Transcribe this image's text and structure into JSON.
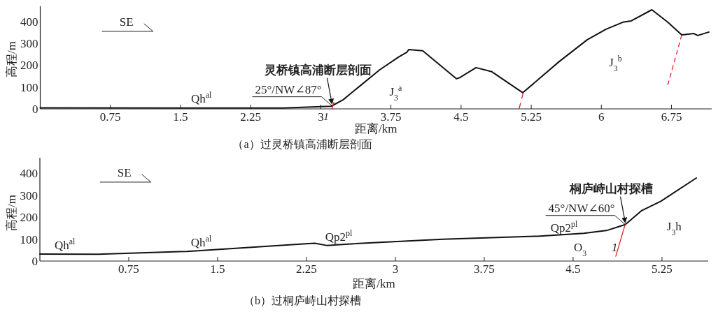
{
  "chart_data": [
    {
      "type": "line",
      "title": "（a）过灵桥镇高浦断层剖面",
      "xlabel": "距离/km",
      "ylabel": "高程/m",
      "xlim": [
        0,
        7.18
      ],
      "ylim": [
        0,
        470
      ],
      "xticks": [
        0.75,
        1.5,
        2.25,
        3,
        3.75,
        4.5,
        5.25,
        6,
        6.75
      ],
      "yticks": [
        0,
        100,
        200,
        300,
        400
      ],
      "series": [
        {
          "color": "#111111",
          "x": [
            0,
            1.5,
            2.6,
            3.0,
            3.11,
            3.24,
            3.31,
            3.63,
            3.83,
            3.92,
            3.94,
            4.09,
            4.45,
            4.49,
            4.66,
            4.83,
            5.16,
            5.55,
            5.85,
            6.05,
            6.23,
            6.32,
            6.54,
            6.71,
            6.86,
            6.99,
            7.03,
            7.15
          ],
          "values": [
            5,
            4,
            4,
            10,
            12,
            42,
            67,
            179,
            237,
            259,
            272,
            266,
            138,
            144,
            189,
            170,
            74,
            217,
            317,
            365,
            397,
            403,
            454,
            397,
            339,
            345,
            336,
            352
          ]
        },
        {
          "color": "#e0202a",
          "line_style": "solid",
          "x": [
            3.12,
            3.14
          ],
          "values": [
            0,
            30
          ]
        },
        {
          "color": "#e0202a",
          "line_style": "dashed",
          "x": [
            5.12,
            5.165
          ],
          "values": [
            0,
            74
          ]
        },
        {
          "color": "#e0202a",
          "line_style": "dashed",
          "x": [
            6.71,
            6.86
          ],
          "values": [
            109,
            339
          ]
        }
      ],
      "annotations": [
        "SE",
        "Qh$^{al}$",
        "J$_{3}$$^{a}$",
        "J$_{3}$$^{b}$",
        {
          "text": "灵桥镇高浦断层剖面",
          "x": 3.12,
          "y": 14
        },
        {
          "text": "25°/NW∠87°",
          "x": 3.12,
          "y": 14
        },
        {
          "text": "1",
          "x": 3.08,
          "y": 0
        }
      ]
    },
    {
      "type": "line",
      "title": "（b）过桐庐峙山村探槽",
      "xlabel": "距离/km",
      "ylabel": "高程/m",
      "xlim": [
        0,
        5.64
      ],
      "ylim": [
        0,
        470
      ],
      "xticks": [
        0.75,
        1.5,
        2.25,
        3,
        3.75,
        4.5,
        5.25
      ],
      "yticks": [
        0,
        100,
        200,
        300,
        400
      ],
      "series": [
        {
          "color": "#111111",
          "x": [
            0,
            0.49,
            1.24,
            1.63,
            2.22,
            2.32,
            2.42,
            2.62,
            3.4,
            4.2,
            4.59,
            4.79,
            4.94,
            5.08,
            5.24,
            5.54
          ],
          "values": [
            32,
            31,
            44,
            57,
            78,
            81,
            71,
            78,
            99,
            113,
            126,
            140,
            166,
            230,
            272,
            378
          ]
        },
        {
          "color": "#e0202a",
          "line_style": "solid",
          "x": [
            4.86,
            4.94
          ],
          "values": [
            22,
            168
          ]
        }
      ],
      "annotations": [
        "SE",
        "Qh$^{al}$",
        "Qh$^{al}$",
        "Qp2$^{pl}$",
        {
          "text": "Qp2$^{pl}$",
          "x": 4.31,
          "y": 133
        },
        "O$_{3}$",
        "J$_{3}$h",
        {
          "text": "桐庐峙山村探槽",
          "x": 4.94,
          "y": 166
        },
        {
          "text": "45°/NW∠60°",
          "x": 4.94,
          "y": 166
        },
        {
          "text": "1",
          "x": 4.85,
          "y": 44
        }
      ]
    }
  ]
}
